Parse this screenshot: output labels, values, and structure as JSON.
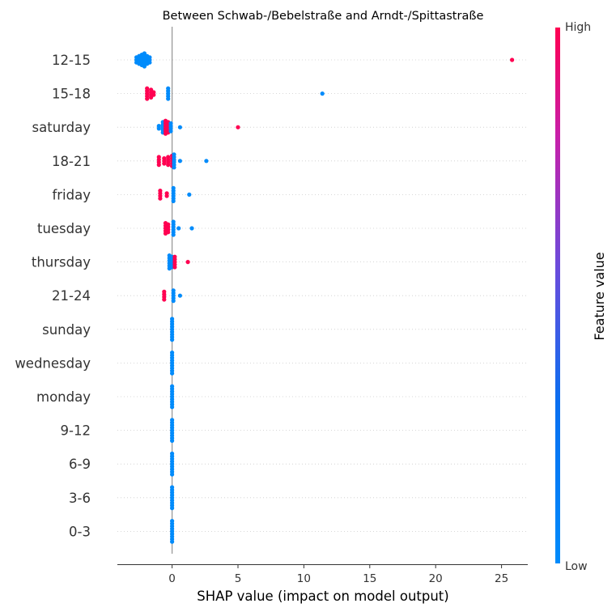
{
  "chart_data": {
    "type": "scatter",
    "subtype": "shap-beeswarm-summary",
    "title": "Between Schwab-/Bebelstraße and Arndt-/Spittastraße",
    "xlabel": "SHAP value (impact on model output)",
    "ylabel": "",
    "xlim": [
      -4.1,
      27.0
    ],
    "xticks": [
      0,
      5,
      10,
      15,
      20,
      25
    ],
    "colorbar": {
      "label": "Feature value",
      "high": "High",
      "low": "Low",
      "low_color": "#008bfb",
      "high_color": "#ff0051"
    },
    "features": [
      {
        "name": "12-15",
        "points": [
          {
            "v": -2.7,
            "n": 3,
            "c": "low"
          },
          {
            "v": -2.5,
            "n": 4,
            "c": "low"
          },
          {
            "v": -2.3,
            "n": 5,
            "c": "low"
          },
          {
            "v": -2.1,
            "n": 6,
            "c": "low"
          },
          {
            "v": -1.9,
            "n": 4,
            "c": "low"
          },
          {
            "v": -1.7,
            "n": 3,
            "c": "low"
          },
          {
            "v": 25.8,
            "n": 1,
            "c": "high"
          }
        ]
      },
      {
        "name": "15-18",
        "points": [
          {
            "v": -1.9,
            "n": 5,
            "c": "high"
          },
          {
            "v": -1.6,
            "n": 4,
            "c": "high"
          },
          {
            "v": -1.4,
            "n": 2,
            "c": "high"
          },
          {
            "v": -0.3,
            "n": 5,
            "c": "low"
          },
          {
            "v": 11.4,
            "n": 1,
            "c": "low"
          }
        ]
      },
      {
        "name": "saturday",
        "points": [
          {
            "v": -1.0,
            "n": 2,
            "c": "low"
          },
          {
            "v": -0.7,
            "n": 5,
            "c": "low"
          },
          {
            "v": -0.5,
            "n": 6,
            "c": "high"
          },
          {
            "v": -0.3,
            "n": 5,
            "c": "high"
          },
          {
            "v": -0.1,
            "n": 4,
            "c": "low"
          },
          {
            "v": 0.6,
            "n": 1,
            "c": "low"
          },
          {
            "v": 5.0,
            "n": 1,
            "c": "high"
          }
        ]
      },
      {
        "name": "18-21",
        "points": [
          {
            "v": -1.0,
            "n": 4,
            "c": "high"
          },
          {
            "v": -0.6,
            "n": 3,
            "c": "high"
          },
          {
            "v": -0.3,
            "n": 4,
            "c": "high"
          },
          {
            "v": 0.0,
            "n": 5,
            "c": "high"
          },
          {
            "v": 0.15,
            "n": 6,
            "c": "low"
          },
          {
            "v": 0.6,
            "n": 1,
            "c": "low"
          },
          {
            "v": 2.6,
            "n": 1,
            "c": "low"
          }
        ]
      },
      {
        "name": "friday",
        "points": [
          {
            "v": -0.9,
            "n": 4,
            "c": "high"
          },
          {
            "v": -0.4,
            "n": 2,
            "c": "high"
          },
          {
            "v": 0.1,
            "n": 6,
            "c": "low"
          },
          {
            "v": 1.3,
            "n": 1,
            "c": "low"
          }
        ]
      },
      {
        "name": "tuesday",
        "points": [
          {
            "v": -0.5,
            "n": 5,
            "c": "high"
          },
          {
            "v": -0.3,
            "n": 4,
            "c": "high"
          },
          {
            "v": 0.1,
            "n": 6,
            "c": "low"
          },
          {
            "v": 0.5,
            "n": 1,
            "c": "low"
          },
          {
            "v": 1.5,
            "n": 1,
            "c": "low"
          }
        ]
      },
      {
        "name": "thursday",
        "points": [
          {
            "v": -0.2,
            "n": 6,
            "c": "low"
          },
          {
            "v": 0.0,
            "n": 5,
            "c": "low"
          },
          {
            "v": 0.2,
            "n": 5,
            "c": "high"
          },
          {
            "v": 1.2,
            "n": 1,
            "c": "high"
          }
        ]
      },
      {
        "name": "21-24",
        "points": [
          {
            "v": -0.6,
            "n": 4,
            "c": "high"
          },
          {
            "v": 0.1,
            "n": 5,
            "c": "low"
          },
          {
            "v": 0.6,
            "n": 1,
            "c": "low"
          }
        ]
      },
      {
        "name": "sunday",
        "points": [
          {
            "v": 0.0,
            "n": 9,
            "c": "low"
          }
        ]
      },
      {
        "name": "wednesday",
        "points": [
          {
            "v": 0.0,
            "n": 9,
            "c": "low"
          }
        ]
      },
      {
        "name": "monday",
        "points": [
          {
            "v": 0.0,
            "n": 9,
            "c": "low"
          }
        ]
      },
      {
        "name": "9-12",
        "points": [
          {
            "v": 0.0,
            "n": 9,
            "c": "low"
          }
        ]
      },
      {
        "name": "6-9",
        "points": [
          {
            "v": 0.0,
            "n": 9,
            "c": "low"
          }
        ]
      },
      {
        "name": "3-6",
        "points": [
          {
            "v": 0.0,
            "n": 9,
            "c": "low"
          }
        ]
      },
      {
        "name": "0-3",
        "points": [
          {
            "v": 0.0,
            "n": 9,
            "c": "low"
          }
        ]
      }
    ]
  }
}
